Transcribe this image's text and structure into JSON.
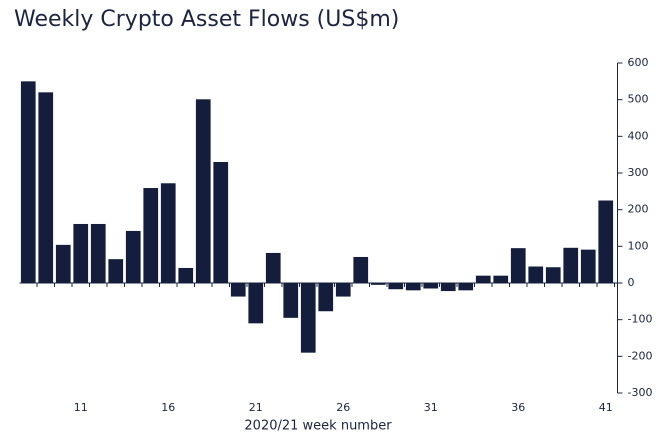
{
  "chart_data": {
    "type": "bar",
    "title": "Weekly Crypto Asset Flows (US$m)",
    "x_label": "2020/21 week number",
    "categories": [
      null,
      null,
      null,
      11,
      null,
      null,
      null,
      null,
      16,
      null,
      null,
      null,
      null,
      21,
      null,
      null,
      null,
      null,
      26,
      null,
      null,
      null,
      null,
      31,
      null,
      null,
      null,
      null,
      36,
      null,
      null,
      null,
      null,
      41
    ],
    "values": [
      550,
      520,
      104,
      161,
      161,
      65,
      142,
      259,
      272,
      41,
      501,
      330,
      -37,
      -110,
      82,
      -95,
      -190,
      -77,
      -37,
      71,
      -5,
      -17,
      -20,
      -15,
      -22,
      -20,
      20,
      20,
      95,
      45,
      43,
      96,
      91,
      225
    ],
    "color": "#141e3c",
    "ylim": [
      -300,
      600
    ],
    "yticks": [
      -300,
      -200,
      -100,
      0,
      100,
      200,
      300,
      400,
      500,
      600
    ],
    "y_axis_side": "right",
    "grid": false
  }
}
